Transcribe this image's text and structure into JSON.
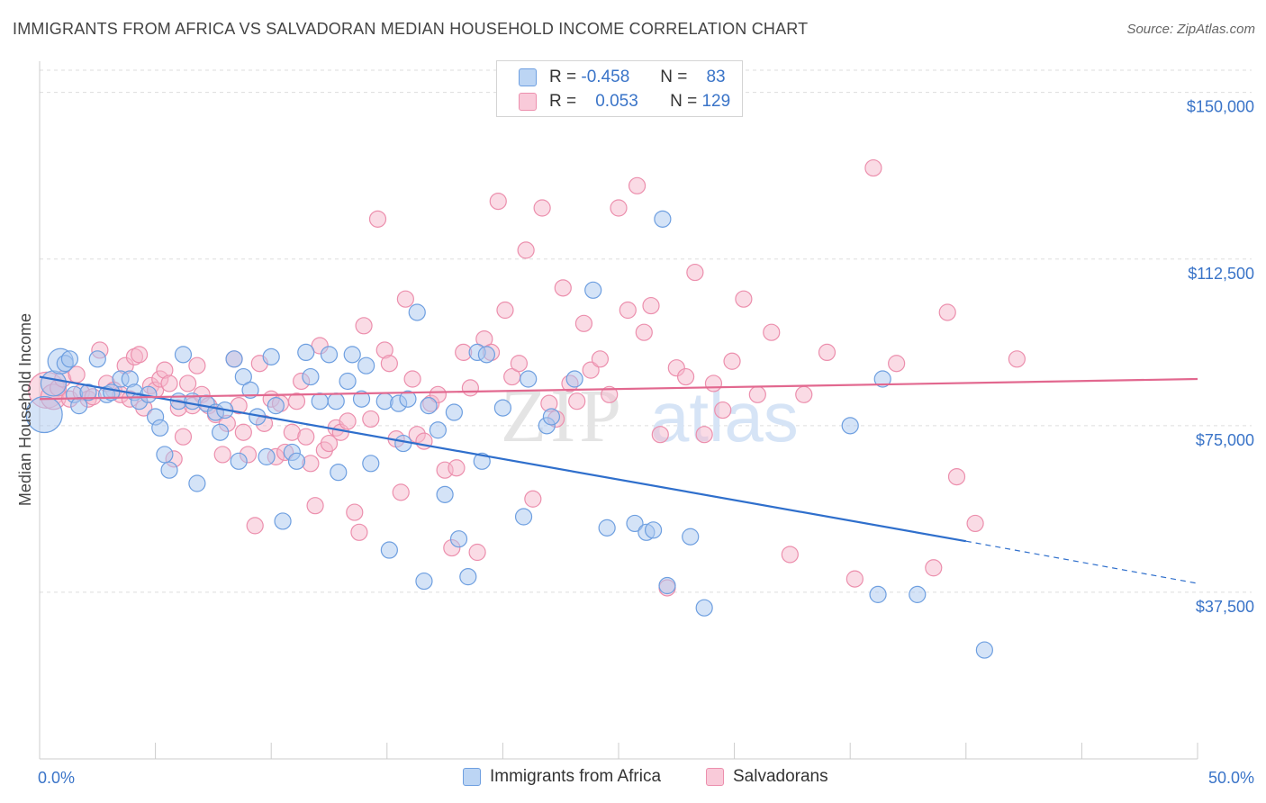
{
  "title": "IMMIGRANTS FROM AFRICA VS SALVADORAN MEDIAN HOUSEHOLD INCOME CORRELATION CHART",
  "source": "Source: ZipAtlas.com",
  "watermark": {
    "zip": "ZIP",
    "atlas": "atlas"
  },
  "legend": {
    "rows": [
      {
        "r_label": "R =",
        "r_value": "-0.458",
        "n_label": "N =",
        "n_value": "83"
      },
      {
        "r_label": "R =",
        "r_value": "0.053",
        "n_label": "N =",
        "n_value": "129"
      }
    ]
  },
  "bottom_legend": [
    "Immigrants from Africa",
    "Salvadorans"
  ],
  "colors": {
    "blue_fill": "#a9c8ef",
    "blue_stroke": "#6e9fe0",
    "blue_line": "#2f6fcc",
    "pink_fill": "#f5b8cb",
    "pink_stroke": "#ec8fad",
    "pink_line": "#e2688f",
    "axis_label": "#3a74c8",
    "grid": "#dddddd"
  },
  "chart_data": {
    "type": "scatter",
    "title": "IMMIGRANTS FROM AFRICA VS SALVADORAN MEDIAN HOUSEHOLD INCOME CORRELATION CHART",
    "xlabel": "",
    "ylabel": "Median Household Income",
    "xlim": [
      0,
      50
    ],
    "ylim": [
      0,
      155000
    ],
    "x_tick_labels": [
      "0.0%",
      "50.0%"
    ],
    "y_ticks": [
      37500,
      75000,
      112500,
      150000
    ],
    "y_tick_labels": [
      "$37,500",
      "$75,000",
      "$112,500",
      "$150,000"
    ],
    "grid": true,
    "legend_position": "top-center",
    "series": [
      {
        "name": "Immigrants from Africa",
        "r": -0.458,
        "n": 83,
        "trend": {
          "x0": 0,
          "y0": 86000,
          "x1": 40,
          "y1": 49000,
          "dash_to_x": 50,
          "dash_to_y": 39500
        },
        "points": [
          [
            0.2,
            77500,
            3
          ],
          [
            0.6,
            84500,
            2
          ],
          [
            0.9,
            89500,
            2
          ],
          [
            1.1,
            89000,
            1
          ],
          [
            1.3,
            90000,
            1
          ],
          [
            1.5,
            82000,
            1
          ],
          [
            1.7,
            79500,
            1
          ],
          [
            2.1,
            82500,
            1
          ],
          [
            2.5,
            90000,
            1
          ],
          [
            2.9,
            82000,
            1
          ],
          [
            3.1,
            82500,
            1
          ],
          [
            3.5,
            85500,
            1
          ],
          [
            3.9,
            85500,
            1
          ],
          [
            4.1,
            82500,
            1
          ],
          [
            4.3,
            80500,
            1
          ],
          [
            4.7,
            82000,
            1
          ],
          [
            5.0,
            77000,
            1
          ],
          [
            5.2,
            74500,
            1
          ],
          [
            5.4,
            68500,
            1
          ],
          [
            5.6,
            65000,
            1
          ],
          [
            6.0,
            80500,
            1
          ],
          [
            6.2,
            91000,
            1
          ],
          [
            6.6,
            80500,
            1
          ],
          [
            6.8,
            62000,
            1
          ],
          [
            7.2,
            80000,
            1
          ],
          [
            7.6,
            78000,
            1
          ],
          [
            7.8,
            73500,
            1
          ],
          [
            8.0,
            78500,
            1
          ],
          [
            8.4,
            90000,
            1
          ],
          [
            8.6,
            67000,
            1
          ],
          [
            8.8,
            86000,
            1
          ],
          [
            9.1,
            83000,
            1
          ],
          [
            9.4,
            77000,
            1
          ],
          [
            9.8,
            68000,
            1
          ],
          [
            10.0,
            90500,
            1
          ],
          [
            10.2,
            79500,
            1
          ],
          [
            10.5,
            53500,
            1
          ],
          [
            10.9,
            69000,
            1
          ],
          [
            11.1,
            67000,
            1
          ],
          [
            11.5,
            91500,
            1
          ],
          [
            11.7,
            86000,
            1
          ],
          [
            12.1,
            80500,
            1
          ],
          [
            12.5,
            91000,
            1
          ],
          [
            12.8,
            80500,
            1
          ],
          [
            12.9,
            64500,
            1
          ],
          [
            13.3,
            85000,
            1
          ],
          [
            13.5,
            91000,
            1
          ],
          [
            13.9,
            81000,
            1
          ],
          [
            14.1,
            88500,
            1
          ],
          [
            14.3,
            66500,
            1
          ],
          [
            14.9,
            80500,
            1
          ],
          [
            15.1,
            47000,
            1
          ],
          [
            15.5,
            80000,
            1
          ],
          [
            15.7,
            71000,
            1
          ],
          [
            15.9,
            81000,
            1
          ],
          [
            16.3,
            100500,
            1
          ],
          [
            16.6,
            40000,
            1
          ],
          [
            16.8,
            79500,
            1
          ],
          [
            17.2,
            74000,
            1
          ],
          [
            17.5,
            59500,
            1
          ],
          [
            17.9,
            78000,
            1
          ],
          [
            18.1,
            49500,
            1
          ],
          [
            18.5,
            41000,
            1
          ],
          [
            18.9,
            91500,
            1
          ],
          [
            19.1,
            67000,
            1
          ],
          [
            19.3,
            91000,
            1
          ],
          [
            20.0,
            79000,
            1
          ],
          [
            20.9,
            54500,
            1
          ],
          [
            21.1,
            85500,
            1
          ],
          [
            21.9,
            75000,
            1
          ],
          [
            22.1,
            77000,
            1
          ],
          [
            23.1,
            85500,
            1
          ],
          [
            23.9,
            105500,
            1
          ],
          [
            24.5,
            52000,
            1
          ],
          [
            25.7,
            53000,
            1
          ],
          [
            26.2,
            51000,
            1
          ],
          [
            26.5,
            51500,
            1
          ],
          [
            26.9,
            121500,
            1
          ],
          [
            27.1,
            39000,
            1
          ],
          [
            28.1,
            50000,
            1
          ],
          [
            28.7,
            34000,
            1
          ],
          [
            35.0,
            75000,
            1
          ],
          [
            36.4,
            85500,
            1
          ],
          [
            37.9,
            37000,
            1
          ],
          [
            36.2,
            37000,
            1
          ],
          [
            40.8,
            24500,
            1
          ]
        ]
      },
      {
        "name": "Salvadorans",
        "r": 0.053,
        "n": 129,
        "trend": {
          "x0": 0,
          "y0": 81000,
          "x1": 50,
          "y1": 85500
        },
        "points": [
          [
            0.3,
            83000,
            3
          ],
          [
            0.6,
            81500,
            2
          ],
          [
            0.8,
            83500,
            1
          ],
          [
            1.0,
            85500,
            1
          ],
          [
            1.3,
            81000,
            1
          ],
          [
            1.6,
            86500,
            1
          ],
          [
            1.8,
            82500,
            1
          ],
          [
            2.1,
            81000,
            1
          ],
          [
            2.3,
            81500,
            1
          ],
          [
            2.6,
            92000,
            1
          ],
          [
            2.9,
            84500,
            1
          ],
          [
            3.2,
            83000,
            1
          ],
          [
            3.5,
            82000,
            1
          ],
          [
            3.7,
            88500,
            1
          ],
          [
            3.9,
            81000,
            1
          ],
          [
            4.1,
            90500,
            1
          ],
          [
            4.3,
            91000,
            1
          ],
          [
            4.5,
            79000,
            1
          ],
          [
            4.8,
            84000,
            1
          ],
          [
            5.0,
            83000,
            1
          ],
          [
            5.2,
            85500,
            1
          ],
          [
            5.4,
            87500,
            1
          ],
          [
            5.6,
            84500,
            1
          ],
          [
            5.8,
            67500,
            1
          ],
          [
            6.0,
            79000,
            1
          ],
          [
            6.2,
            72500,
            1
          ],
          [
            6.4,
            84500,
            1
          ],
          [
            6.6,
            79500,
            1
          ],
          [
            6.8,
            88500,
            1
          ],
          [
            7.0,
            82000,
            1
          ],
          [
            7.3,
            79500,
            1
          ],
          [
            7.6,
            77500,
            1
          ],
          [
            7.9,
            68500,
            1
          ],
          [
            8.1,
            75500,
            1
          ],
          [
            8.4,
            90000,
            1
          ],
          [
            8.6,
            79500,
            1
          ],
          [
            8.8,
            73500,
            1
          ],
          [
            9.0,
            68500,
            1
          ],
          [
            9.3,
            52500,
            1
          ],
          [
            9.5,
            89000,
            1
          ],
          [
            9.7,
            75500,
            1
          ],
          [
            10.0,
            81000,
            1
          ],
          [
            10.2,
            68000,
            1
          ],
          [
            10.4,
            80000,
            1
          ],
          [
            10.6,
            69000,
            1
          ],
          [
            10.9,
            73500,
            1
          ],
          [
            11.1,
            80500,
            1
          ],
          [
            11.3,
            85000,
            1
          ],
          [
            11.5,
            72500,
            1
          ],
          [
            11.7,
            66500,
            1
          ],
          [
            11.9,
            57000,
            1
          ],
          [
            12.1,
            93000,
            1
          ],
          [
            12.3,
            69500,
            1
          ],
          [
            12.5,
            71000,
            1
          ],
          [
            12.8,
            74500,
            1
          ],
          [
            13.0,
            73500,
            1
          ],
          [
            13.3,
            76000,
            1
          ],
          [
            13.6,
            55500,
            1
          ],
          [
            13.8,
            51000,
            1
          ],
          [
            14.0,
            97500,
            1
          ],
          [
            14.3,
            76500,
            1
          ],
          [
            14.6,
            121500,
            1
          ],
          [
            14.9,
            92000,
            1
          ],
          [
            15.1,
            89000,
            1
          ],
          [
            15.4,
            72000,
            1
          ],
          [
            15.6,
            60000,
            1
          ],
          [
            15.8,
            103500,
            1
          ],
          [
            16.1,
            85500,
            1
          ],
          [
            16.3,
            73000,
            1
          ],
          [
            16.6,
            71500,
            1
          ],
          [
            16.9,
            80000,
            1
          ],
          [
            17.2,
            82000,
            1
          ],
          [
            17.5,
            65000,
            1
          ],
          [
            17.8,
            47500,
            1
          ],
          [
            18.0,
            65500,
            1
          ],
          [
            18.3,
            91500,
            1
          ],
          [
            18.6,
            83500,
            1
          ],
          [
            18.9,
            46500,
            1
          ],
          [
            19.2,
            94500,
            1
          ],
          [
            19.5,
            91500,
            1
          ],
          [
            19.8,
            125500,
            1
          ],
          [
            20.1,
            101000,
            1
          ],
          [
            20.4,
            86000,
            1
          ],
          [
            20.7,
            89000,
            1
          ],
          [
            21.0,
            114500,
            1
          ],
          [
            21.3,
            58500,
            1
          ],
          [
            21.7,
            124000,
            1
          ],
          [
            22.0,
            80000,
            1
          ],
          [
            22.3,
            76500,
            1
          ],
          [
            22.6,
            106000,
            1
          ],
          [
            22.9,
            84500,
            1
          ],
          [
            23.2,
            80500,
            1
          ],
          [
            23.5,
            98000,
            1
          ],
          [
            23.8,
            87500,
            1
          ],
          [
            24.2,
            90000,
            1
          ],
          [
            24.6,
            82000,
            1
          ],
          [
            25.0,
            124000,
            1
          ],
          [
            25.4,
            101000,
            1
          ],
          [
            25.8,
            129000,
            1
          ],
          [
            26.1,
            96000,
            1
          ],
          [
            26.4,
            102000,
            1
          ],
          [
            26.8,
            73000,
            1
          ],
          [
            27.1,
            38500,
            1
          ],
          [
            27.5,
            88000,
            1
          ],
          [
            27.9,
            86000,
            1
          ],
          [
            28.3,
            109500,
            1
          ],
          [
            28.7,
            73000,
            1
          ],
          [
            29.1,
            84500,
            1
          ],
          [
            29.5,
            78500,
            1
          ],
          [
            29.9,
            89500,
            1
          ],
          [
            30.4,
            103500,
            1
          ],
          [
            31.0,
            82000,
            1
          ],
          [
            31.6,
            96000,
            1
          ],
          [
            32.4,
            46000,
            1
          ],
          [
            33.0,
            82000,
            1
          ],
          [
            34.0,
            91500,
            1
          ],
          [
            35.2,
            40500,
            1
          ],
          [
            36.0,
            133000,
            1
          ],
          [
            37.0,
            89000,
            1
          ],
          [
            38.6,
            43000,
            1
          ],
          [
            39.2,
            100500,
            1
          ],
          [
            39.6,
            63500,
            1
          ],
          [
            40.4,
            53000,
            1
          ],
          [
            42.2,
            90000,
            1
          ]
        ]
      }
    ]
  }
}
